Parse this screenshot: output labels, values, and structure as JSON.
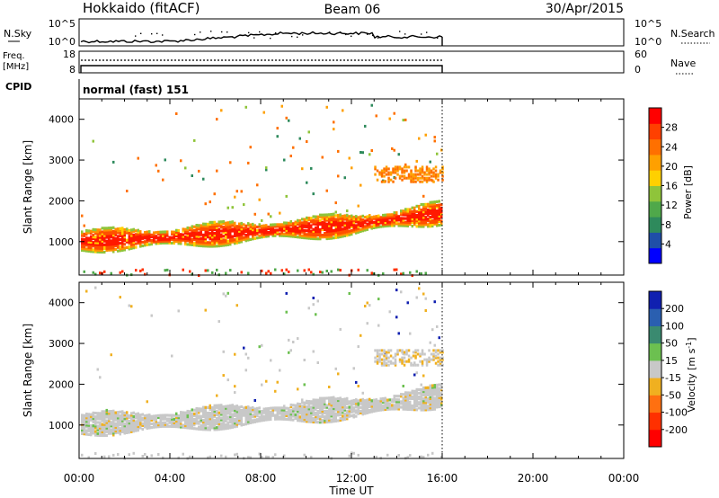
{
  "header": {
    "station": "Hokkaido (fitACF)",
    "beam": "Beam 06",
    "date": "30/Apr/2015"
  },
  "noise_panel": {
    "left_label": "N.Sky",
    "right_label": "N.Search",
    "left_ticks": [
      "10^5",
      "10^0"
    ],
    "right_ticks": [
      "10^5",
      "10^0"
    ]
  },
  "freq_panel": {
    "left_label_1": "Freq.",
    "left_label_2": "[MHz]",
    "right_label": "Nave",
    "left_ticks": [
      "18",
      "8"
    ],
    "right_ticks": [
      "60",
      "0"
    ]
  },
  "cpid": {
    "label": "CPID",
    "value": "normal (fast) 151"
  },
  "chart_data": [
    {
      "type": "heatmap",
      "title": "",
      "xlabel": "Time UT",
      "ylabel": "Slant Range [km]",
      "x_ticks": [
        "00:00",
        "04:00",
        "08:00",
        "12:00",
        "16:00",
        "20:00",
        "00:00"
      ],
      "x_range_hours": [
        0,
        24
      ],
      "data_end_hours": 16,
      "y_ticks": [
        "1000",
        "2000",
        "3000",
        "4000"
      ],
      "y_range_km": [
        180,
        4500
      ],
      "colorbar_label": "Power [dB]",
      "colorbar_ticks": [
        "4",
        "8",
        "12",
        "16",
        "20",
        "24",
        "28"
      ],
      "colorbar_colors": [
        "#0000ff",
        "#1f4fa8",
        "#2e8a5c",
        "#4fa84a",
        "#8fc43a",
        "#ffd000",
        "#ffa000",
        "#ff7000",
        "#ff4000",
        "#ff0000"
      ],
      "main_band_km": [
        [
          0,
          1050
        ],
        [
          4,
          1150
        ],
        [
          8,
          1300
        ],
        [
          12,
          1450
        ],
        [
          16,
          1750
        ]
      ]
    },
    {
      "type": "heatmap",
      "title": "",
      "xlabel": "Time UT",
      "ylabel": "Slant Range [km]",
      "x_ticks": [
        "00:00",
        "04:00",
        "08:00",
        "12:00",
        "16:00",
        "20:00",
        "00:00"
      ],
      "x_range_hours": [
        0,
        24
      ],
      "data_end_hours": 16,
      "y_ticks": [
        "1000",
        "2000",
        "3000",
        "4000"
      ],
      "y_range_km": [
        180,
        4500
      ],
      "colorbar_label": "Velocity [m s",
      "colorbar_label_sup": "-1",
      "colorbar_label_end": "]",
      "colorbar_ticks": [
        "200",
        "100",
        "50",
        "15",
        "-15",
        "-50",
        "-100",
        "-200"
      ],
      "colorbar_colors": [
        "#1020b0",
        "#2a5fb0",
        "#3a8a70",
        "#6cc050",
        "#c8c8c8",
        "#f0b020",
        "#ff7010",
        "#ff3000",
        "#ff0000"
      ],
      "main_band_km": [
        [
          0,
          1050
        ],
        [
          4,
          1150
        ],
        [
          8,
          1300
        ],
        [
          12,
          1450
        ],
        [
          16,
          1750
        ]
      ]
    }
  ]
}
